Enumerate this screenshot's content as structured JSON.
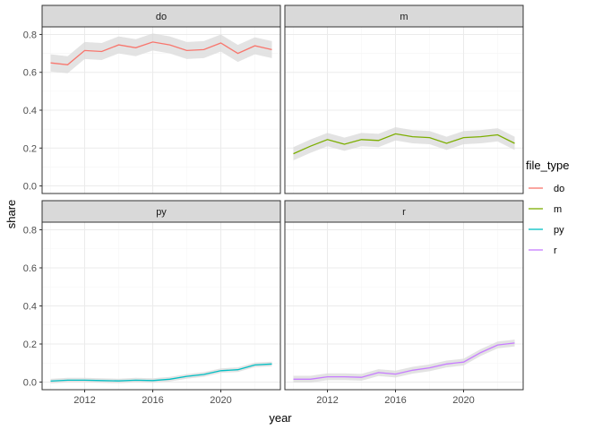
{
  "chart_data": {
    "type": "line",
    "facet_variable": "file_type",
    "xlabel": "year",
    "ylabel": "share",
    "legend_title": "file_type",
    "legend_position": "right",
    "xlim": [
      2009.5,
      2023.5
    ],
    "ylim": [
      -0.04,
      0.84
    ],
    "x_ticks": [
      2012,
      2016,
      2020
    ],
    "y_ticks": [
      0.0,
      0.2,
      0.4,
      0.6,
      0.8
    ],
    "y_tick_labels": [
      "0.0",
      "0.2",
      "0.4",
      "0.6",
      "0.8"
    ],
    "grid": true,
    "confidence_band_color": "#d9d9d9",
    "x": [
      2010,
      2011,
      2012,
      2013,
      2014,
      2015,
      2016,
      2017,
      2018,
      2019,
      2020,
      2021,
      2022,
      2023
    ],
    "series": [
      {
        "name": "do",
        "color": "#F8766D",
        "values": [
          0.65,
          0.64,
          0.715,
          0.71,
          0.745,
          0.73,
          0.76,
          0.745,
          0.715,
          0.72,
          0.755,
          0.7,
          0.74,
          0.72
        ],
        "band": 0.045
      },
      {
        "name": "m",
        "color": "#7CAE00",
        "values": [
          0.17,
          0.21,
          0.245,
          0.22,
          0.245,
          0.24,
          0.275,
          0.26,
          0.255,
          0.225,
          0.255,
          0.26,
          0.27,
          0.225
        ],
        "band": 0.035
      },
      {
        "name": "py",
        "color": "#00BFC4",
        "values": [
          0.005,
          0.01,
          0.01,
          0.008,
          0.006,
          0.01,
          0.008,
          0.015,
          0.03,
          0.04,
          0.06,
          0.065,
          0.09,
          0.095
        ],
        "band": 0.012
      },
      {
        "name": "r",
        "color": "#C77CFF",
        "values": [
          0.015,
          0.015,
          0.028,
          0.028,
          0.025,
          0.05,
          0.042,
          0.062,
          0.075,
          0.095,
          0.105,
          0.155,
          0.195,
          0.205
        ],
        "band": 0.018
      }
    ]
  }
}
